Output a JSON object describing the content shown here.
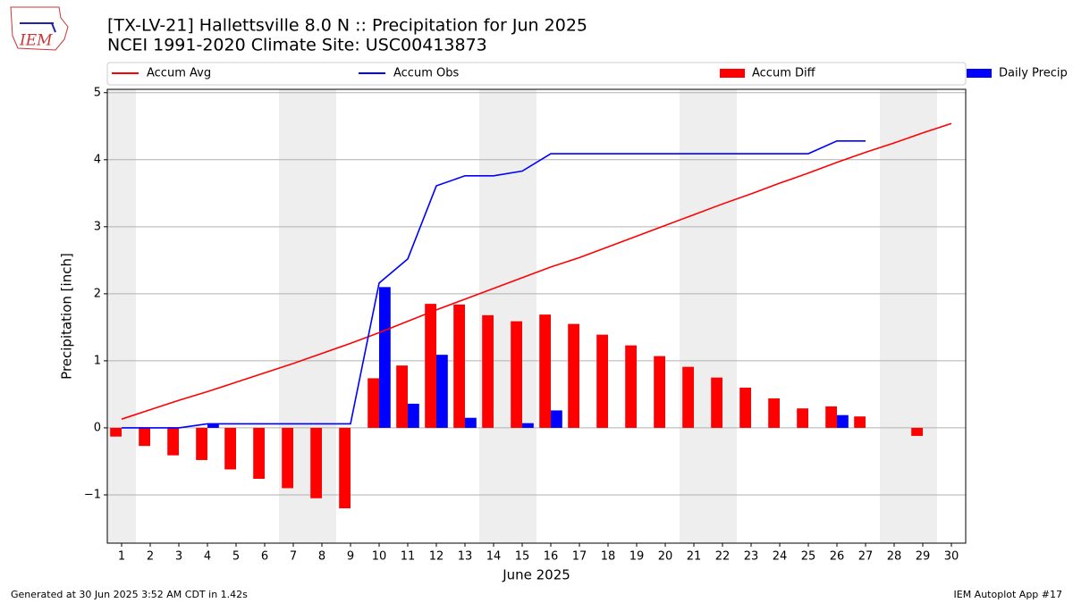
{
  "chart_data": {
    "type": "combo",
    "title": "[TX-LV-21] Hallettsville 8.0 N :: Precipitation for Jun 2025",
    "subtitle": "NCEI 1991-2020 Climate Site: USC00413873",
    "logo_text": "IEM",
    "x_label": "June 2025",
    "y_label": "Precipitation [inch]",
    "x": [
      1,
      2,
      3,
      4,
      5,
      6,
      7,
      8,
      9,
      10,
      11,
      12,
      13,
      14,
      15,
      16,
      17,
      18,
      19,
      20,
      21,
      22,
      23,
      24,
      25,
      26,
      27,
      28,
      29,
      30
    ],
    "xlim": [
      0.5,
      30.5
    ],
    "xticks": [
      1,
      2,
      3,
      4,
      5,
      6,
      7,
      8,
      9,
      10,
      11,
      12,
      13,
      14,
      15,
      16,
      17,
      18,
      19,
      20,
      21,
      22,
      23,
      24,
      25,
      26,
      27,
      28,
      29,
      30
    ],
    "ylim": [
      -1.72,
      5.05
    ],
    "yticks": [
      {
        "value": -1,
        "label": "−1"
      },
      0,
      1,
      2,
      3,
      4,
      5
    ],
    "grid": true,
    "shaded_days": [
      1,
      7,
      8,
      14,
      15,
      21,
      22,
      28,
      29
    ],
    "series": [
      {
        "name": "Accum Avg",
        "type": "line",
        "color": "#ff0000",
        "values": [
          0.13,
          0.27,
          0.41,
          0.54,
          0.68,
          0.82,
          0.96,
          1.11,
          1.26,
          1.42,
          1.59,
          1.76,
          1.92,
          2.08,
          2.24,
          2.4,
          2.54,
          2.7,
          2.86,
          3.02,
          3.18,
          3.34,
          3.49,
          3.65,
          3.8,
          3.96,
          4.11,
          4.25,
          4.4,
          4.54
        ]
      },
      {
        "name": "Accum Obs",
        "type": "line",
        "color": "#0000ff",
        "values": [
          0,
          0,
          0,
          0.06,
          0.06,
          0.06,
          0.06,
          0.06,
          0.06,
          2.16,
          2.52,
          3.61,
          3.76,
          3.76,
          3.83,
          4.09,
          4.09,
          4.09,
          4.09,
          4.09,
          4.09,
          4.09,
          4.09,
          4.09,
          4.09,
          4.28,
          4.28,
          null,
          null,
          null
        ]
      },
      {
        "name": "Accum Diff",
        "type": "bar",
        "color": "#ff0000",
        "values": [
          -0.13,
          -0.27,
          -0.41,
          -0.48,
          -0.62,
          -0.76,
          -0.9,
          -1.05,
          -1.2,
          0.74,
          0.93,
          1.85,
          1.84,
          1.68,
          1.59,
          1.69,
          1.55,
          1.39,
          1.23,
          1.07,
          0.91,
          0.75,
          0.6,
          0.44,
          0.29,
          0.32,
          0.17,
          null,
          -0.12,
          null
        ]
      },
      {
        "name": "Daily Precip",
        "type": "bar",
        "color": "#0000ff",
        "values": [
          0,
          0,
          0,
          0.06,
          0,
          0,
          0,
          0,
          0,
          2.1,
          0.36,
          1.09,
          0.15,
          0,
          0.07,
          0.26,
          0,
          0,
          0,
          0,
          0,
          0,
          0,
          0,
          0,
          0.19,
          0,
          null,
          null,
          null
        ]
      }
    ],
    "footer_left": "Generated at 30 Jun 2025 3:52 AM CDT in 1.42s",
    "footer_right": "IEM Autoplot App #17"
  }
}
